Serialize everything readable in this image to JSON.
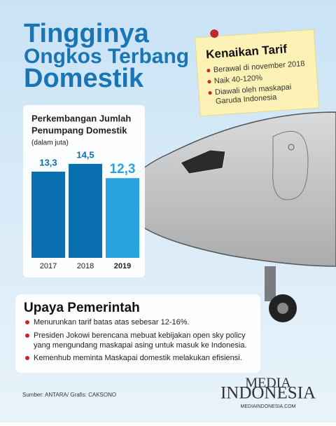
{
  "title": [
    "Tingginya",
    "Ongkos Terbang",
    "Domestik"
  ],
  "note": {
    "title": "Kenaikan Tarif",
    "items": [
      [
        "Berawal di november 2018"
      ],
      [
        "Naik 40-120%"
      ],
      [
        "Diawali oleh maskapai",
        "Garuda Indonesia"
      ]
    ]
  },
  "chart_data": {
    "type": "bar",
    "title": [
      "Perkembangan Jumlah",
      "Penumpang Domestik"
    ],
    "subtitle": "(dalam juta)",
    "categories": [
      "2017",
      "2018",
      "2019"
    ],
    "values": [
      13.3,
      14.5,
      12.3
    ],
    "value_labels": [
      "13,3",
      "14,5",
      "12,3"
    ],
    "colors": [
      "#0a6fae",
      "#0a6fae",
      "#29a3dd"
    ]
  },
  "upaya": {
    "title": "Upaya Pemerintah",
    "items": [
      [
        "Menurunkan tarif batas atas sebesar 12-16%."
      ],
      [
        "Presiden Jokowi berencana mebuat kebijakan open sky policy",
        "yang mengundang maskapai asing untuk masuk ke Indonesia."
      ],
      [
        "Kemenhub meminta Maskapai domestik melakukan efisiensi."
      ]
    ]
  },
  "source": "Sumber: ANTARA/ Grafis: CAKSONO",
  "logo": {
    "line1": "MEDIA",
    "line2": "INDONESIA",
    "url": "MEDIAINDONESIA.COM"
  }
}
